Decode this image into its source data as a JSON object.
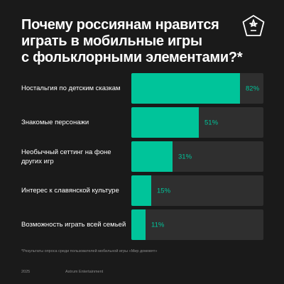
{
  "title_lines": [
    "Почему россиянам нравится",
    "играть в мобильные игры",
    "с фольклорными элементами?*"
  ],
  "logo_icon": "astrum-star-logo-icon",
  "colors": {
    "background": "#1a1a1a",
    "bar_fill": "#00c49a",
    "bar_track": "#2f2f2f",
    "value_on_fill": "#1a1a1a",
    "value_on_track": "#00c49a"
  },
  "chart_data": {
    "type": "bar",
    "orientation": "horizontal",
    "categories": [
      "Ностальгия по детским сказкам",
      "Знакомые персонажи",
      "Необычный сеттинг на фоне других игр",
      "Интерес к славянской культуре",
      "Возможность играть всей семьей"
    ],
    "values": [
      82,
      51,
      31,
      15,
      11
    ],
    "value_labels": [
      "82%",
      "51%",
      "31%",
      "15%",
      "11%"
    ],
    "xlim": [
      0,
      100
    ],
    "unit": "%"
  },
  "footnote": "*Результаты опроса среди пользователей мобильной игры «Мир домовят»",
  "footer": {
    "year": "2025",
    "company": "Astrum Entertainment"
  }
}
